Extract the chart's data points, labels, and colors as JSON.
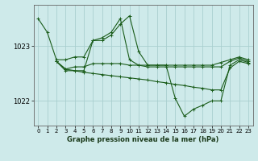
{
  "title": "Graphe pression niveau de la mer (hPa)",
  "background_color": "#ceeaea",
  "grid_color": "#aacfcf",
  "line_color": "#1a5c1a",
  "ylim": [
    1021.55,
    1023.75
  ],
  "xlim": [
    -0.5,
    23.5
  ],
  "yticks": [
    1022,
    1023
  ],
  "xticks": [
    0,
    1,
    2,
    3,
    4,
    5,
    6,
    7,
    8,
    9,
    10,
    11,
    12,
    13,
    14,
    15,
    16,
    17,
    18,
    19,
    20,
    21,
    22,
    23
  ],
  "series": [
    {
      "x": [
        0,
        1,
        2,
        3,
        4,
        5,
        6,
        7,
        8,
        9,
        10,
        11,
        12,
        13,
        14,
        15,
        16,
        17,
        18,
        19,
        20,
        21,
        22,
        23
      ],
      "y": [
        1023.5,
        1023.25,
        1022.75,
        1022.75,
        1022.8,
        1022.8,
        1023.1,
        1023.15,
        1023.25,
        1023.5,
        1022.75,
        1022.65,
        1022.65,
        1022.65,
        1022.65,
        1022.65,
        1022.65,
        1022.65,
        1022.65,
        1022.65,
        1022.7,
        1022.75,
        1022.8,
        1022.75
      ]
    },
    {
      "x": [
        2,
        3,
        4,
        5,
        6,
        7,
        8,
        9,
        10,
        11,
        12,
        13,
        14,
        15,
        16,
        17,
        18,
        19,
        20,
        21,
        22,
        23
      ],
      "y": [
        1022.72,
        1022.58,
        1022.62,
        1022.62,
        1022.68,
        1022.68,
        1022.68,
        1022.68,
        1022.65,
        1022.65,
        1022.62,
        1022.62,
        1022.62,
        1022.62,
        1022.62,
        1022.62,
        1022.62,
        1022.62,
        1022.62,
        1022.72,
        1022.78,
        1022.72
      ]
    },
    {
      "x": [
        2,
        3,
        4,
        5,
        6,
        7,
        8,
        9,
        10,
        11,
        12,
        13,
        14,
        15,
        16,
        17,
        18,
        19,
        20,
        21,
        22,
        23
      ],
      "y": [
        1022.72,
        1022.55,
        1022.55,
        1022.55,
        1023.1,
        1023.1,
        1023.2,
        1023.4,
        1023.55,
        1022.9,
        1022.65,
        1022.65,
        1022.65,
        1022.05,
        1021.72,
        1021.85,
        1021.92,
        1022.0,
        1022.0,
        1022.65,
        1022.75,
        1022.7
      ]
    },
    {
      "x": [
        2,
        3,
        4,
        5,
        6,
        7,
        8,
        9,
        10,
        11,
        12,
        13,
        14,
        15,
        16,
        17,
        18,
        19,
        20,
        21,
        22,
        23
      ],
      "y": [
        1022.72,
        1022.58,
        1022.55,
        1022.52,
        1022.5,
        1022.48,
        1022.46,
        1022.44,
        1022.42,
        1022.4,
        1022.38,
        1022.35,
        1022.33,
        1022.3,
        1022.28,
        1022.25,
        1022.23,
        1022.2,
        1022.2,
        1022.6,
        1022.72,
        1022.68
      ]
    }
  ]
}
